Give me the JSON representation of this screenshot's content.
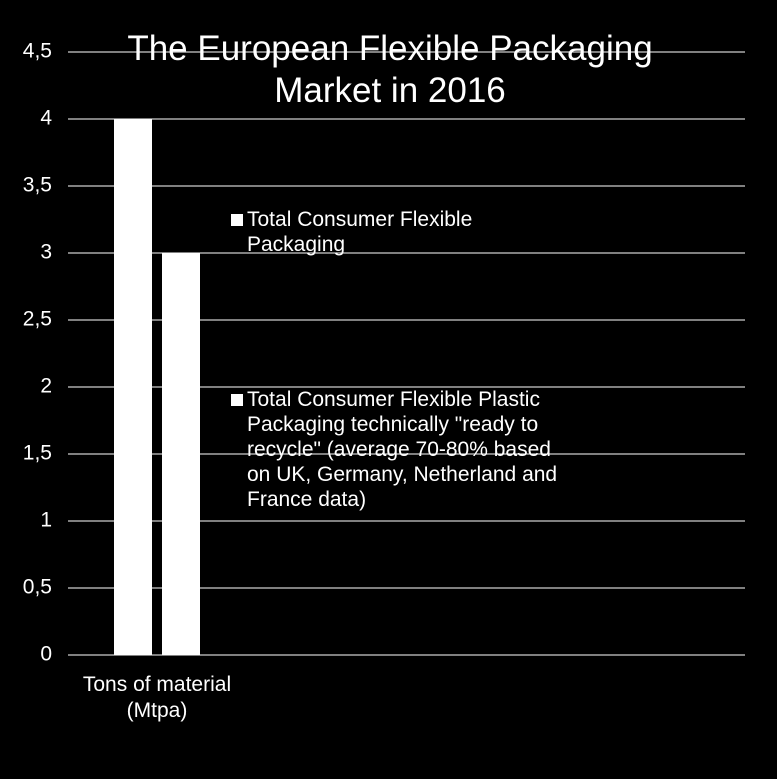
{
  "chart_data": {
    "type": "bar",
    "title": "The European Flexible Packaging Market in 2016",
    "categories": [
      "Tons of material (Mtpa)"
    ],
    "series": [
      {
        "name": "Total Consumer Flexible Packaging",
        "color": "#ffffff",
        "values": [
          4
        ]
      },
      {
        "name": "Total Consumer Flexible Plastic Packaging technically \"ready to recycle\" (average 70-80% based on UK, Germany, Netherland and France data)",
        "color": "#ffffff",
        "values": [
          3
        ]
      }
    ],
    "ylim": [
      0,
      4.5
    ],
    "yticks": [
      0,
      {
        "value": 0.5,
        "label": "0,5"
      },
      1,
      {
        "value": 1.5,
        "label": "1,5"
      },
      2,
      {
        "value": 2.5,
        "label": "2,5"
      },
      3,
      {
        "value": 3.5,
        "label": "3,5"
      },
      4,
      {
        "value": 4.5,
        "label": "4,5"
      }
    ],
    "grid": true,
    "legend": "right"
  }
}
